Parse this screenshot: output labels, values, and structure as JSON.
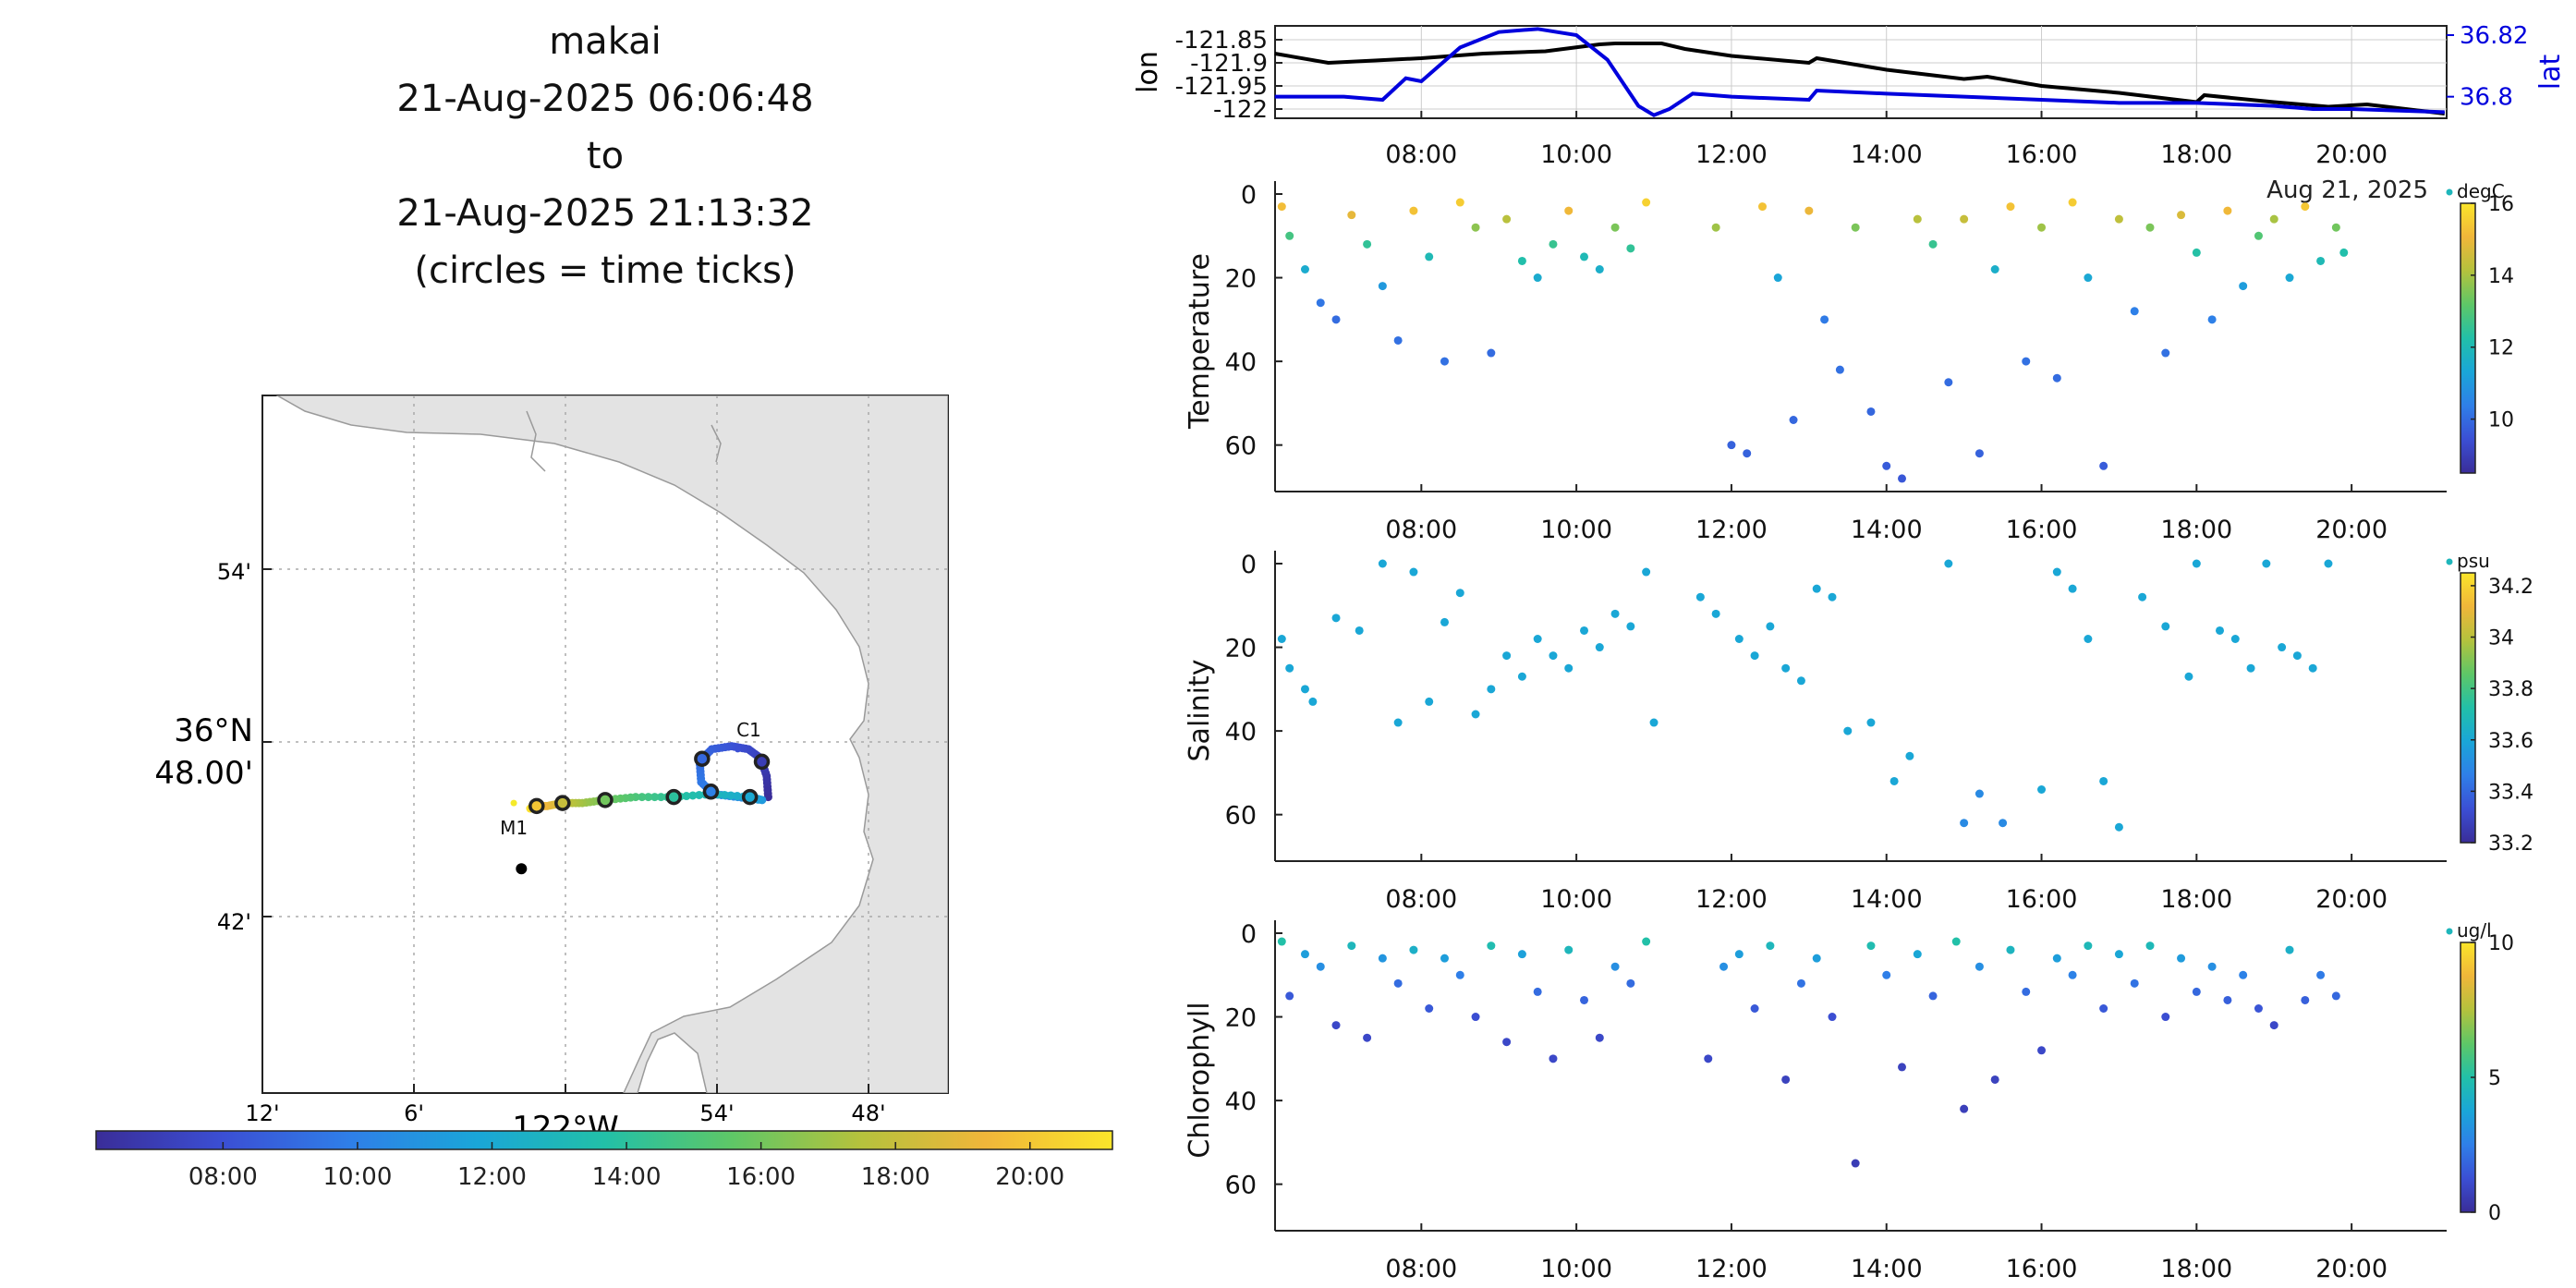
{
  "header": {
    "lines": [
      "makai",
      "21-Aug-2025 06:06:48",
      "to",
      "21-Aug-2025 21:13:32",
      "(circles = time ticks)"
    ]
  },
  "colormap": [
    "#3a2d98",
    "#3b4fd4",
    "#2f7fe8",
    "#1aa6d8",
    "#22c0a8",
    "#5ec767",
    "#b4c23d",
    "#f0b63a",
    "#fbe52a"
  ],
  "time_axis": {
    "range_hours": [
      6.113,
      21.226
    ],
    "ticks": [
      "08:00",
      "10:00",
      "12:00",
      "14:00",
      "16:00",
      "18:00",
      "20:00"
    ],
    "tick_hours": [
      8,
      10,
      12,
      14,
      16,
      18,
      20
    ],
    "date_label": "Aug 21, 2025"
  },
  "chart_data": [
    {
      "id": "map",
      "type": "scatter",
      "title": "",
      "y_ticks": [
        "54'",
        "36°N",
        "42'"
      ],
      "y_tick2": "48.00'",
      "x_ticks": [
        "12'",
        "6'",
        "54'",
        "48'"
      ],
      "x_center_label": "122°W",
      "moorings": [
        {
          "name": "M1",
          "lon": -122.035,
          "lat": 36.797
        },
        {
          "name": "C1",
          "lon": -121.888,
          "lat": 36.815
        }
      ],
      "black_point": {
        "lon": -122.03,
        "lat": 36.775
      },
      "track": [
        {
          "t": 6.11,
          "lon": -121.868,
          "lat": 36.799
        },
        {
          "t": 6.6,
          "lon": -121.869,
          "lat": 36.806
        },
        {
          "t": 7.1,
          "lon": -121.873,
          "lat": 36.812
        },
        {
          "t": 7.6,
          "lon": -121.881,
          "lat": 36.815
        },
        {
          "t": 8.1,
          "lon": -121.892,
          "lat": 36.816
        },
        {
          "t": 8.6,
          "lon": -121.905,
          "lat": 36.815
        },
        {
          "t": 9.1,
          "lon": -121.913,
          "lat": 36.811
        },
        {
          "t": 9.6,
          "lon": -121.912,
          "lat": 36.804
        },
        {
          "t": 10.1,
          "lon": -121.904,
          "lat": 36.8
        },
        {
          "t": 10.6,
          "lon": -121.888,
          "lat": 36.799
        },
        {
          "t": 11.1,
          "lon": -121.872,
          "lat": 36.798
        },
        {
          "t": 12.0,
          "lon": -121.88,
          "lat": 36.799
        },
        {
          "t": 13.0,
          "lon": -121.905,
          "lat": 36.8
        },
        {
          "t": 14.0,
          "lon": -121.93,
          "lat": 36.799
        },
        {
          "t": 15.0,
          "lon": -121.955,
          "lat": 36.799
        },
        {
          "t": 16.0,
          "lon": -121.975,
          "lat": 36.798
        },
        {
          "t": 17.0,
          "lon": -121.99,
          "lat": 36.797
        },
        {
          "t": 18.0,
          "lon": -122.003,
          "lat": 36.797
        },
        {
          "t": 19.0,
          "lon": -122.013,
          "lat": 36.796
        },
        {
          "t": 20.0,
          "lon": -122.02,
          "lat": 36.796
        },
        {
          "t": 21.2,
          "lon": -122.025,
          "lat": 36.795
        }
      ],
      "tick_circles_hours": [
        7,
        9,
        10,
        12,
        14,
        16,
        18,
        20
      ]
    },
    {
      "id": "lonlat",
      "type": "line",
      "ylabel": "lon",
      "y2label": "lat",
      "y_ticks": [
        "-121.85",
        "-121.9",
        "-121.95",
        "-122"
      ],
      "y_tick_values": [
        -121.85,
        -121.9,
        -121.95,
        -122.0
      ],
      "ylim": [
        -122.02,
        -121.82
      ],
      "y2_ticks": [
        "36.82",
        "36.8"
      ],
      "y2_tick_values": [
        36.82,
        36.8
      ],
      "y2lim": [
        36.793,
        36.823
      ],
      "series": [
        {
          "name": "lon",
          "color": "#000000",
          "x": [
            6.11,
            6.8,
            7.4,
            8.0,
            8.8,
            9.6,
            10.3,
            10.5,
            11.1,
            11.4,
            12.0,
            13.0,
            13.1,
            14.0,
            15.0,
            15.3,
            16.0,
            17.0,
            18.0,
            18.1,
            19.0,
            19.7,
            20.2,
            21.2
          ],
          "y": [
            -121.88,
            -121.9,
            -121.895,
            -121.89,
            -121.88,
            -121.875,
            -121.86,
            -121.858,
            -121.858,
            -121.87,
            -121.885,
            -121.9,
            -121.89,
            -121.915,
            -121.935,
            -121.93,
            -121.95,
            -121.965,
            -121.985,
            -121.97,
            -121.985,
            -121.995,
            -121.99,
            -122.01
          ]
        },
        {
          "name": "lat",
          "color": "#0000dd",
          "x": [
            6.11,
            7.0,
            7.5,
            7.8,
            8.0,
            8.5,
            9.0,
            9.5,
            10.0,
            10.4,
            10.8,
            11.0,
            11.2,
            11.5,
            12.0,
            13.0,
            13.1,
            14.0,
            15.0,
            16.0,
            17.0,
            18.0,
            19.0,
            19.5,
            20.0,
            21.2
          ],
          "y": [
            36.8,
            36.8,
            36.799,
            36.806,
            36.805,
            36.816,
            36.821,
            36.822,
            36.82,
            36.812,
            36.797,
            36.794,
            36.796,
            36.801,
            36.8,
            36.799,
            36.802,
            36.801,
            36.8,
            36.799,
            36.798,
            36.798,
            36.797,
            36.796,
            36.796,
            36.795
          ]
        }
      ]
    },
    {
      "id": "temperature",
      "type": "scatter",
      "ylabel": "Temperature",
      "unit": "degC",
      "ylim": [
        0,
        72
      ],
      "y_ticks": [
        "0",
        "20",
        "40",
        "60"
      ],
      "y_tick_values": [
        0,
        20,
        40,
        60
      ],
      "clim": [
        8.5,
        16
      ],
      "cbar_ticks": [
        "16",
        "14",
        "12",
        "10"
      ],
      "cbar_tick_values": [
        16,
        14,
        12,
        10
      ]
    },
    {
      "id": "salinity",
      "type": "scatter",
      "ylabel": "Salinity",
      "unit": "psu",
      "ylim": [
        0,
        72
      ],
      "y_ticks": [
        "0",
        "20",
        "40",
        "60"
      ],
      "y_tick_values": [
        0,
        20,
        40,
        60
      ],
      "clim": [
        33.2,
        34.25
      ],
      "cbar_ticks": [
        "34.2",
        "34",
        "33.8",
        "33.6",
        "33.4",
        "33.2"
      ],
      "cbar_tick_values": [
        34.2,
        34.0,
        33.8,
        33.6,
        33.4,
        33.2
      ]
    },
    {
      "id": "chlorophyll",
      "type": "scatter",
      "ylabel": "Chlorophyll",
      "unit": "ug/l",
      "ylim": [
        0,
        72
      ],
      "y_ticks": [
        "0",
        "20",
        "40",
        "60"
      ],
      "y_tick_values": [
        0,
        20,
        40,
        60
      ],
      "clim": [
        0,
        10
      ],
      "cbar_ticks": [
        "10",
        "5",
        "0"
      ],
      "cbar_tick_values": [
        10,
        5,
        0
      ]
    }
  ],
  "profiles": {
    "depth_shallow": [
      2,
      3,
      1,
      4,
      2,
      5,
      3,
      1,
      2,
      4
    ],
    "temperature_points": [
      [
        6.2,
        3,
        15.2
      ],
      [
        6.3,
        10,
        12.8
      ],
      [
        6.5,
        18,
        11.5
      ],
      [
        6.7,
        26,
        10.2
      ],
      [
        6.9,
        30,
        10.0
      ],
      [
        7.1,
        5,
        14.9
      ],
      [
        7.3,
        12,
        12.5
      ],
      [
        7.5,
        22,
        11.0
      ],
      [
        7.7,
        35,
        10.1
      ],
      [
        7.9,
        4,
        15.3
      ],
      [
        8.1,
        15,
        12.0
      ],
      [
        8.3,
        40,
        10.1
      ],
      [
        8.5,
        2,
        15.5
      ],
      [
        8.7,
        8,
        13.7
      ],
      [
        8.9,
        38,
        10.0
      ],
      [
        9.1,
        6,
        14.2
      ],
      [
        9.3,
        16,
        12.2
      ],
      [
        9.5,
        20,
        11.5
      ],
      [
        9.7,
        12,
        12.6
      ],
      [
        9.9,
        4,
        15.1
      ],
      [
        10.1,
        15,
        12.0
      ],
      [
        10.3,
        18,
        11.6
      ],
      [
        10.5,
        8,
        13.5
      ],
      [
        10.7,
        13,
        12.5
      ],
      [
        10.9,
        2,
        15.6
      ],
      [
        11.8,
        8,
        13.9
      ],
      [
        12.0,
        60,
        9.8
      ],
      [
        12.2,
        62,
        9.8
      ],
      [
        12.4,
        3,
        15.3
      ],
      [
        12.6,
        20,
        11.3
      ],
      [
        12.8,
        54,
        9.9
      ],
      [
        13.0,
        4,
        15.0
      ],
      [
        13.2,
        30,
        10.3
      ],
      [
        13.4,
        42,
        10.1
      ],
      [
        13.6,
        8,
        13.5
      ],
      [
        13.8,
        52,
        9.9
      ],
      [
        14.0,
        65,
        9.7
      ],
      [
        14.2,
        68,
        9.6
      ],
      [
        14.4,
        6,
        14.2
      ],
      [
        14.6,
        12,
        12.6
      ],
      [
        14.8,
        45,
        10.0
      ],
      [
        15.0,
        6,
        14.4
      ],
      [
        15.2,
        62,
        9.8
      ],
      [
        15.4,
        18,
        11.6
      ],
      [
        15.6,
        3,
        15.3
      ],
      [
        15.8,
        40,
        10.1
      ],
      [
        16.0,
        8,
        13.9
      ],
      [
        16.2,
        44,
        10.0
      ],
      [
        16.4,
        2,
        15.5
      ],
      [
        16.6,
        20,
        11.4
      ],
      [
        16.8,
        65,
        9.7
      ],
      [
        17.0,
        6,
        14.3
      ],
      [
        17.2,
        28,
        10.4
      ],
      [
        17.4,
        8,
        13.5
      ],
      [
        17.6,
        38,
        10.1
      ],
      [
        17.8,
        5,
        14.7
      ],
      [
        18.0,
        14,
        12.3
      ],
      [
        18.2,
        30,
        10.4
      ],
      [
        18.4,
        4,
        15.1
      ],
      [
        18.6,
        22,
        11.1
      ],
      [
        18.8,
        10,
        13.0
      ],
      [
        19.0,
        6,
        14.0
      ],
      [
        19.2,
        20,
        11.4
      ],
      [
        19.4,
        3,
        15.4
      ],
      [
        19.6,
        16,
        12.0
      ],
      [
        19.8,
        8,
        13.4
      ],
      [
        19.9,
        14,
        12.2
      ]
    ],
    "salinity_points": [
      [
        6.2,
        18,
        33.6
      ],
      [
        6.3,
        25,
        33.6
      ],
      [
        6.5,
        30,
        33.6
      ],
      [
        6.6,
        33,
        33.6
      ],
      [
        6.9,
        13,
        33.6
      ],
      [
        7.2,
        16,
        33.6
      ],
      [
        7.5,
        0,
        33.6
      ],
      [
        7.7,
        38,
        33.6
      ],
      [
        7.9,
        2,
        33.6
      ],
      [
        8.1,
        33,
        33.6
      ],
      [
        8.3,
        14,
        33.6
      ],
      [
        8.5,
        7,
        33.6
      ],
      [
        8.7,
        36,
        33.6
      ],
      [
        8.9,
        30,
        33.6
      ],
      [
        9.1,
        22,
        33.6
      ],
      [
        9.3,
        27,
        33.6
      ],
      [
        9.5,
        18,
        33.6
      ],
      [
        9.7,
        22,
        33.6
      ],
      [
        9.9,
        25,
        33.6
      ],
      [
        10.1,
        16,
        33.6
      ],
      [
        10.3,
        20,
        33.6
      ],
      [
        10.5,
        12,
        33.6
      ],
      [
        10.7,
        15,
        33.6
      ],
      [
        10.9,
        2,
        33.6
      ],
      [
        11.0,
        38,
        33.6
      ],
      [
        11.6,
        8,
        33.6
      ],
      [
        11.8,
        12,
        33.6
      ],
      [
        12.1,
        18,
        33.6
      ],
      [
        12.3,
        22,
        33.6
      ],
      [
        12.5,
        15,
        33.6
      ],
      [
        12.7,
        25,
        33.6
      ],
      [
        12.9,
        28,
        33.6
      ],
      [
        13.1,
        6,
        33.6
      ],
      [
        13.3,
        8,
        33.6
      ],
      [
        13.5,
        40,
        33.6
      ],
      [
        13.8,
        38,
        33.6
      ],
      [
        14.1,
        52,
        33.6
      ],
      [
        14.3,
        46,
        33.6
      ],
      [
        14.8,
        0,
        33.6
      ],
      [
        15.0,
        62,
        33.5
      ],
      [
        15.2,
        55,
        33.5
      ],
      [
        15.5,
        62,
        33.5
      ],
      [
        16.0,
        54,
        33.6
      ],
      [
        16.2,
        2,
        33.6
      ],
      [
        16.4,
        6,
        33.6
      ],
      [
        16.6,
        18,
        33.6
      ],
      [
        16.8,
        52,
        33.6
      ],
      [
        17.0,
        63,
        33.6
      ],
      [
        17.3,
        8,
        33.6
      ],
      [
        17.6,
        15,
        33.6
      ],
      [
        17.9,
        27,
        33.6
      ],
      [
        18.0,
        0,
        33.6
      ],
      [
        18.3,
        16,
        33.6
      ],
      [
        18.5,
        18,
        33.6
      ],
      [
        18.7,
        25,
        33.6
      ],
      [
        18.9,
        0,
        33.6
      ],
      [
        19.1,
        20,
        33.6
      ],
      [
        19.3,
        22,
        33.6
      ],
      [
        19.5,
        25,
        33.6
      ],
      [
        19.7,
        0,
        33.6
      ]
    ],
    "chlorophyll_points": [
      [
        6.2,
        2,
        5.0
      ],
      [
        6.3,
        15,
        1.5
      ],
      [
        6.5,
        5,
        3.5
      ],
      [
        6.7,
        8,
        3.0
      ],
      [
        6.9,
        22,
        1.0
      ],
      [
        7.1,
        3,
        4.5
      ],
      [
        7.3,
        25,
        1.0
      ],
      [
        7.5,
        6,
        3.2
      ],
      [
        7.7,
        12,
        2.0
      ],
      [
        7.9,
        4,
        4.2
      ],
      [
        8.1,
        18,
        1.5
      ],
      [
        8.3,
        6,
        3.5
      ],
      [
        8.5,
        10,
        2.5
      ],
      [
        8.7,
        20,
        1.2
      ],
      [
        8.9,
        3,
        4.8
      ],
      [
        9.1,
        26,
        1.0
      ],
      [
        9.3,
        5,
        3.6
      ],
      [
        9.5,
        14,
        2.0
      ],
      [
        9.7,
        30,
        1.0
      ],
      [
        9.9,
        4,
        4.5
      ],
      [
        10.1,
        16,
        1.8
      ],
      [
        10.3,
        25,
        1.0
      ],
      [
        10.5,
        8,
        3.0
      ],
      [
        10.7,
        12,
        2.0
      ],
      [
        10.9,
        2,
        5.0
      ],
      [
        11.7,
        30,
        1.0
      ],
      [
        11.9,
        8,
        3.0
      ],
      [
        12.1,
        5,
        3.5
      ],
      [
        12.3,
        18,
        1.5
      ],
      [
        12.5,
        3,
        4.5
      ],
      [
        12.7,
        35,
        0.8
      ],
      [
        12.9,
        12,
        2.2
      ],
      [
        13.1,
        6,
        3.5
      ],
      [
        13.3,
        20,
        1.2
      ],
      [
        13.6,
        55,
        0.6
      ],
      [
        13.8,
        3,
        4.8
      ],
      [
        14.0,
        10,
        2.5
      ],
      [
        14.2,
        32,
        0.8
      ],
      [
        14.4,
        5,
        3.8
      ],
      [
        14.6,
        15,
        1.8
      ],
      [
        14.9,
        2,
        5.0
      ],
      [
        15.0,
        42,
        0.7
      ],
      [
        15.2,
        8,
        3.0
      ],
      [
        15.4,
        35,
        0.8
      ],
      [
        15.6,
        4,
        4.4
      ],
      [
        15.8,
        14,
        2.0
      ],
      [
        16.0,
        28,
        1.0
      ],
      [
        16.2,
        6,
        3.5
      ],
      [
        16.4,
        10,
        2.6
      ],
      [
        16.6,
        3,
        4.6
      ],
      [
        16.8,
        18,
        1.5
      ],
      [
        17.0,
        5,
        3.8
      ],
      [
        17.2,
        12,
        2.2
      ],
      [
        17.4,
        3,
        4.6
      ],
      [
        17.6,
        20,
        1.2
      ],
      [
        17.8,
        6,
        3.4
      ],
      [
        18.0,
        14,
        1.9
      ],
      [
        18.2,
        8,
        3.0
      ],
      [
        18.4,
        16,
        1.7
      ],
      [
        18.6,
        10,
        2.6
      ],
      [
        18.8,
        18,
        1.4
      ],
      [
        19.0,
        22,
        1.0
      ],
      [
        19.2,
        4,
        4.2
      ],
      [
        19.4,
        16,
        1.7
      ],
      [
        19.6,
        10,
        2.4
      ],
      [
        19.8,
        15,
        1.9
      ]
    ]
  }
}
